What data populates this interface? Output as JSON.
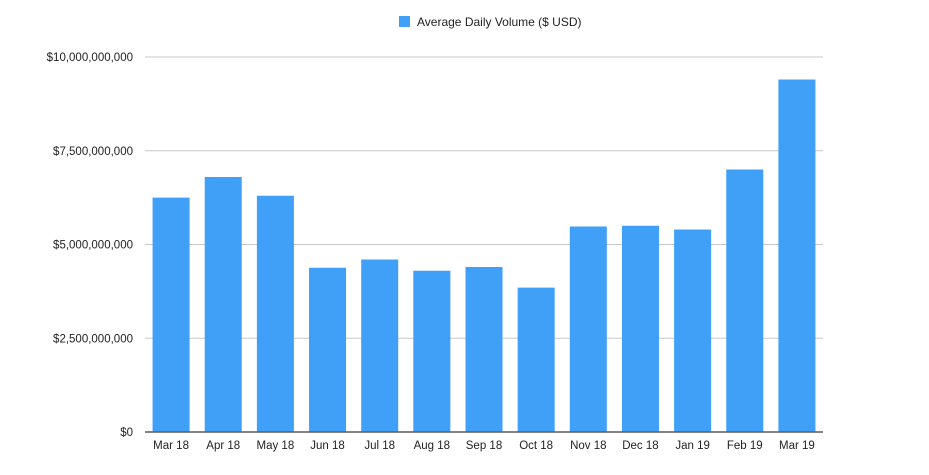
{
  "chart_data": {
    "type": "bar",
    "title": "",
    "xlabel": "",
    "ylabel": "",
    "legend": {
      "position": "top-center",
      "entries": [
        "Average Daily Volume ($ USD)"
      ]
    },
    "categories": [
      "Mar 18",
      "Apr 18",
      "May 18",
      "Jun 18",
      "Jul 18",
      "Aug 18",
      "Sep 18",
      "Oct 18",
      "Nov 18",
      "Dec 18",
      "Jan 19",
      "Feb 19",
      "Mar 19"
    ],
    "series": [
      {
        "name": "Average Daily Volume ($ USD)",
        "color": "#40a0f8",
        "values": [
          6250000000,
          6800000000,
          6300000000,
          4380000000,
          4600000000,
          4300000000,
          4400000000,
          3850000000,
          5480000000,
          5500000000,
          5400000000,
          7000000000,
          9400000000
        ]
      }
    ],
    "ylim": [
      0,
      10000000000
    ],
    "yticks": [
      0,
      2500000000,
      5000000000,
      7500000000,
      10000000000
    ],
    "ytick_labels": [
      "$0",
      "$2,500,000,000",
      "$5,000,000,000",
      "$7,500,000,000",
      "$10,000,000,000"
    ],
    "grid": true,
    "gridline_color": "#c8c8c8",
    "axis_color": "#555555"
  }
}
